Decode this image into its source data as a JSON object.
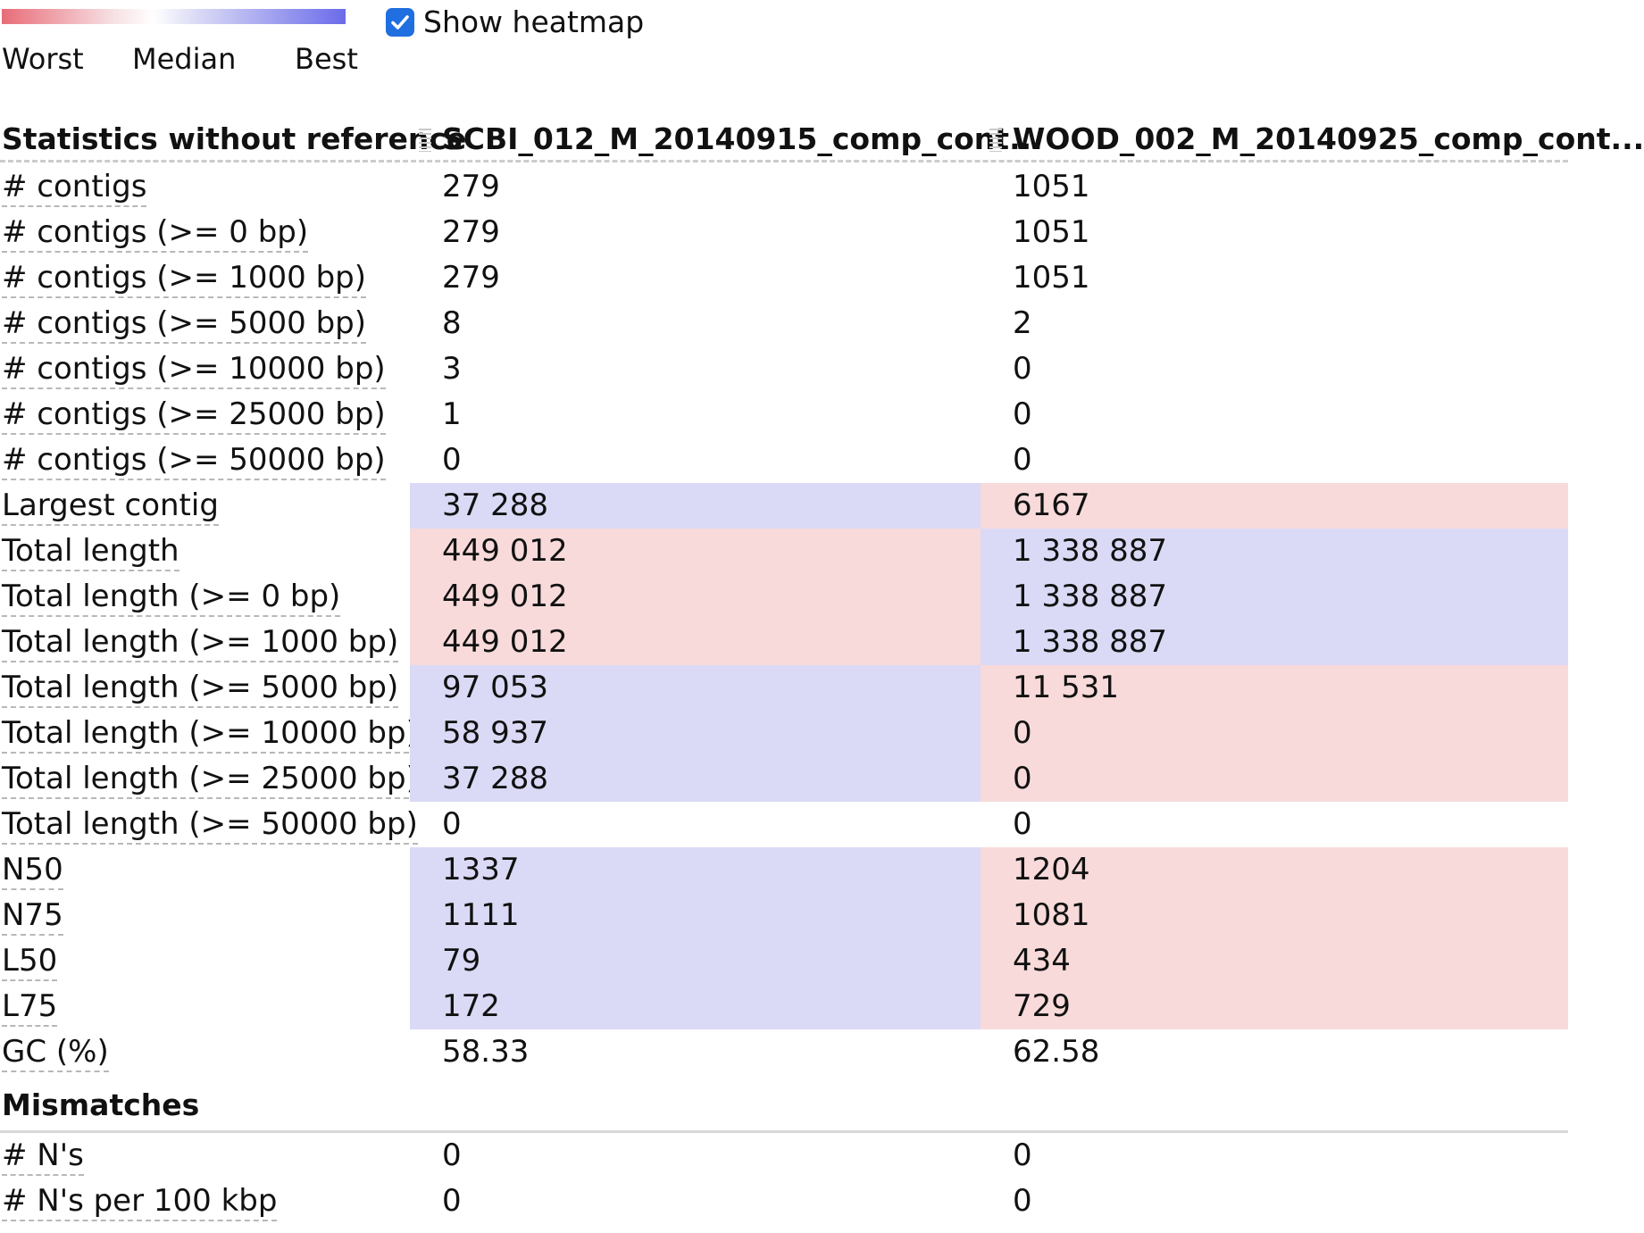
{
  "legend": {
    "worst": "Worst",
    "median": "Median",
    "best": "Best",
    "colors": {
      "worst": "#e86c78",
      "best": "#6b6bea",
      "worst_cell": "#f8dada",
      "best_cell": "#dadaf6"
    }
  },
  "heatmap_toggle": {
    "label": "Show heatmap",
    "checked": true,
    "icon": "checkmark-icon"
  },
  "table": {
    "header": {
      "title": "Statistics without reference",
      "col_a": "SCBI_012_M_20140915_comp_cont...",
      "col_b": "WOOD_002_M_20140925_comp_cont...",
      "grip_icon": "drag-handle-icon"
    },
    "rows": [
      {
        "metric": "# contigs",
        "a": "279",
        "b": "1051",
        "a_heat": "",
        "b_heat": ""
      },
      {
        "metric": "# contigs (>= 0 bp)",
        "a": "279",
        "b": "1051",
        "a_heat": "",
        "b_heat": ""
      },
      {
        "metric": "# contigs (>= 1000 bp)",
        "a": "279",
        "b": "1051",
        "a_heat": "",
        "b_heat": ""
      },
      {
        "metric": "# contigs (>= 5000 bp)",
        "a": "8",
        "b": "2",
        "a_heat": "",
        "b_heat": ""
      },
      {
        "metric": "# contigs (>= 10000 bp)",
        "a": "3",
        "b": "0",
        "a_heat": "",
        "b_heat": ""
      },
      {
        "metric": "# contigs (>= 25000 bp)",
        "a": "1",
        "b": "0",
        "a_heat": "",
        "b_heat": ""
      },
      {
        "metric": "# contigs (>= 50000 bp)",
        "a": "0",
        "b": "0",
        "a_heat": "",
        "b_heat": ""
      },
      {
        "metric": "Largest contig",
        "a": "37 288",
        "b": "6167",
        "a_heat": "best",
        "b_heat": "worst"
      },
      {
        "metric": "Total length",
        "a": "449 012",
        "b": "1 338 887",
        "a_heat": "worst",
        "b_heat": "best"
      },
      {
        "metric": "Total length (>= 0 bp)",
        "a": "449 012",
        "b": "1 338 887",
        "a_heat": "worst",
        "b_heat": "best"
      },
      {
        "metric": "Total length (>= 1000 bp)",
        "a": "449 012",
        "b": "1 338 887",
        "a_heat": "worst",
        "b_heat": "best"
      },
      {
        "metric": "Total length (>= 5000 bp)",
        "a": "97 053",
        "b": "11 531",
        "a_heat": "best",
        "b_heat": "worst"
      },
      {
        "metric": "Total length (>= 10000 bp)",
        "a": "58 937",
        "b": "0",
        "a_heat": "best",
        "b_heat": "worst"
      },
      {
        "metric": "Total length (>= 25000 bp)",
        "a": "37 288",
        "b": "0",
        "a_heat": "best",
        "b_heat": "worst"
      },
      {
        "metric": "Total length (>= 50000 bp)",
        "a": "0",
        "b": "0",
        "a_heat": "",
        "b_heat": ""
      },
      {
        "metric": "N50",
        "a": "1337",
        "b": "1204",
        "a_heat": "best",
        "b_heat": "worst"
      },
      {
        "metric": "N75",
        "a": "1111",
        "b": "1081",
        "a_heat": "best",
        "b_heat": "worst"
      },
      {
        "metric": "L50",
        "a": "79",
        "b": "434",
        "a_heat": "best",
        "b_heat": "worst"
      },
      {
        "metric": "L75",
        "a": "172",
        "b": "729",
        "a_heat": "best",
        "b_heat": "worst"
      },
      {
        "metric": "GC (%)",
        "a": "58.33",
        "b": "62.58",
        "a_heat": "",
        "b_heat": ""
      }
    ],
    "mismatches": {
      "title": "Mismatches",
      "rows": [
        {
          "metric": "# N's",
          "a": "0",
          "b": "0",
          "a_heat": "",
          "b_heat": ""
        },
        {
          "metric": "# N's per 100 kbp",
          "a": "0",
          "b": "0",
          "a_heat": "",
          "b_heat": ""
        }
      ]
    }
  }
}
